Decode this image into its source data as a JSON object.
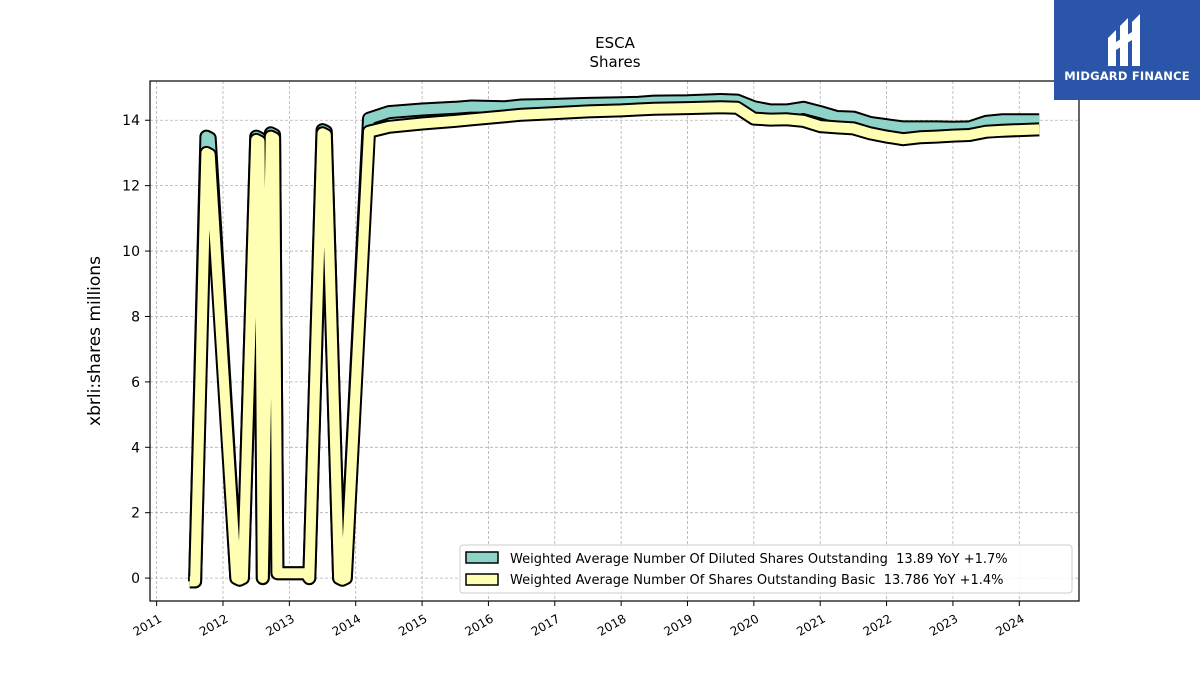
{
  "brand": {
    "name": "MIDGARD FINANCE",
    "color": "#2b55a8"
  },
  "chart_data": {
    "type": "area",
    "title": "ESCA",
    "subtitle": "Shares",
    "ylabel": "xbrli:shares millions",
    "xlabel": "",
    "ylim": [
      -0.7,
      15.2
    ],
    "xlim": [
      2010.9,
      2024.9
    ],
    "yticks": [
      0,
      2,
      4,
      6,
      8,
      10,
      12,
      14
    ],
    "xticks": [
      "2011",
      "2012",
      "2013",
      "2014",
      "2015",
      "2016",
      "2017",
      "2018",
      "2019",
      "2020",
      "2021",
      "2022",
      "2023",
      "2024"
    ],
    "grid": true,
    "legend_position": "lower-right",
    "series": [
      {
        "name": "Weighted Average Number Of Diluted Shares Outstanding",
        "legend_label": "Weighted Average Number Of Diluted Shares Outstanding  13.89 YoY +1.7%",
        "color": "#8dd3c7",
        "x": [
          2011.5,
          2011.58,
          2011.75,
          2011.8,
          2012.2,
          2012.25,
          2012.3,
          2012.5,
          2012.55,
          2012.6,
          2012.72,
          2012.77,
          2012.82,
          2013.0,
          2013.25,
          2013.3,
          2013.5,
          2013.55,
          2013.75,
          2013.8,
          2013.85,
          2014.2,
          2014.5,
          2015.0,
          2015.5,
          2015.75,
          2016.25,
          2016.5,
          2017.0,
          2017.5,
          2018.0,
          2018.25,
          2018.5,
          2019.0,
          2019.5,
          2019.75,
          2020.0,
          2020.25,
          2020.5,
          2020.75,
          2021.0,
          2021.25,
          2021.5,
          2021.75,
          2022.0,
          2022.25,
          2022.5,
          2022.75,
          2023.0,
          2023.25,
          2023.5,
          2023.75,
          2024.0,
          2024.3
        ],
        "values": [
          -0.1,
          -0.1,
          13.5,
          13.45,
          0.0,
          -0.05,
          0.0,
          13.5,
          13.45,
          0.0,
          13.6,
          13.55,
          0.15,
          0.15,
          0.15,
          0.0,
          13.7,
          13.65,
          0.0,
          -0.05,
          0.0,
          14.05,
          14.25,
          14.33,
          14.38,
          14.42,
          14.4,
          14.45,
          14.47,
          14.5,
          14.52,
          14.53,
          14.57,
          14.58,
          14.62,
          14.6,
          14.4,
          14.3,
          14.3,
          14.38,
          14.25,
          14.1,
          14.08,
          13.92,
          13.85,
          13.78,
          13.78,
          13.78,
          13.77,
          13.78,
          13.95,
          14.0,
          14.0,
          14.0
        ]
      },
      {
        "name": "Weighted Average Number Of Shares Outstanding Basic",
        "legend_label": "Weighted Average Number Of Shares Outstanding Basic  13.786 YoY +1.4%",
        "color": "#ffffb3",
        "x": [
          2011.5,
          2011.58,
          2011.75,
          2011.8,
          2012.2,
          2012.25,
          2012.3,
          2012.5,
          2012.55,
          2012.6,
          2012.72,
          2012.77,
          2012.82,
          2013.0,
          2013.25,
          2013.3,
          2013.5,
          2013.55,
          2013.75,
          2013.8,
          2013.85,
          2014.2,
          2014.5,
          2015.0,
          2015.5,
          2015.75,
          2016.25,
          2016.5,
          2017.0,
          2017.5,
          2018.0,
          2018.25,
          2018.5,
          2019.0,
          2019.5,
          2019.75,
          2020.0,
          2020.25,
          2020.5,
          2020.75,
          2021.0,
          2021.25,
          2021.5,
          2021.75,
          2022.0,
          2022.25,
          2022.5,
          2022.75,
          2023.0,
          2023.25,
          2023.5,
          2023.75,
          2024.0,
          2024.3
        ],
        "values": [
          -0.1,
          -0.1,
          13.0,
          12.95,
          0.0,
          -0.05,
          0.0,
          13.4,
          13.35,
          0.0,
          13.5,
          13.45,
          0.15,
          0.15,
          0.15,
          0.0,
          13.6,
          13.55,
          0.0,
          -0.05,
          0.0,
          13.65,
          13.8,
          13.9,
          13.98,
          14.03,
          14.12,
          14.17,
          14.22,
          14.27,
          14.3,
          14.33,
          14.35,
          14.37,
          14.4,
          14.38,
          14.05,
          14.02,
          14.03,
          13.98,
          13.82,
          13.78,
          13.75,
          13.6,
          13.5,
          13.42,
          13.48,
          13.5,
          13.53,
          13.55,
          13.65,
          13.68,
          13.7,
          13.72
        ]
      }
    ]
  }
}
